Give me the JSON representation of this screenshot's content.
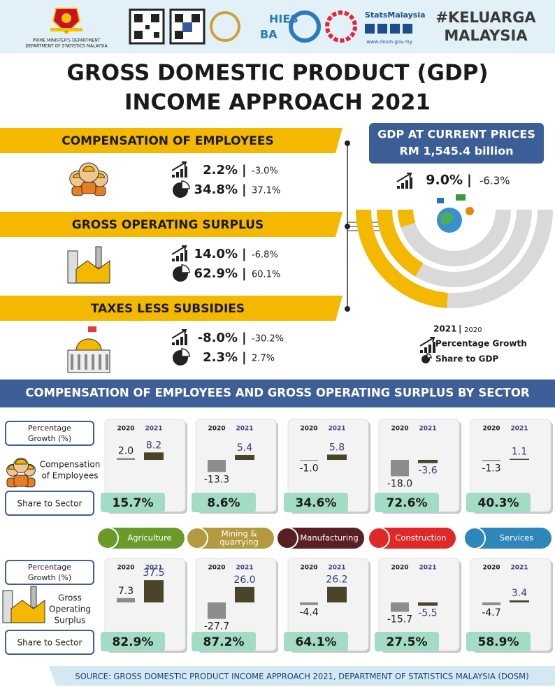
{
  "header": {
    "org_lines": [
      "PRIME MINISTER'S DEPARTMENT",
      "DEPARTMENT OF STATISTICS MALAYSIA"
    ],
    "hies_lines": [
      "HIES",
      "BA"
    ],
    "stats_brand": "StatsMalaysia",
    "url": "www.dosm.gov.my",
    "hashtag_lines": [
      "#KELUARGA",
      "MALAYSIA"
    ]
  },
  "title_lines": [
    "GROSS DOMESTIC PRODUCT (GDP)",
    "INCOME APPROACH 2021"
  ],
  "separator": "|",
  "components": [
    {
      "name": "COMPENSATION OF EMPLOYEES",
      "growth_2021": "2.2%",
      "growth_2020": "-3.0%",
      "share_2021": "34.8%",
      "share_2020": "37.1%"
    },
    {
      "name": "GROSS OPERATING SURPLUS",
      "growth_2021": "14.0%",
      "growth_2020": "-6.8%",
      "share_2021": "62.9%",
      "share_2020": "60.1%"
    },
    {
      "name": "TAXES LESS SUBSIDIES",
      "growth_2021": "-8.0%",
      "growth_2020": "-30.2%",
      "share_2021": "2.3%",
      "share_2020": "2.7%"
    }
  ],
  "gdp": {
    "label": "GDP AT CURRENT PRICES",
    "value": "RM 1,545.4 billion",
    "growth_2021": "9.0%",
    "growth_2020": "-6.3%"
  },
  "legend": {
    "year_2021": "2021",
    "year_2020": "2020",
    "growth": "Percentage Growth",
    "share": "Share to GDP"
  },
  "sector_section": {
    "title": "COMPENSATION OF EMPLOYEES AND GROSS OPERATING SURPLUS BY SECTOR",
    "growth_label_lines": [
      "Percentage",
      "Growth (%)"
    ],
    "share_label": "Share to Sector",
    "sectors": [
      {
        "label_lines": [
          "Agriculture"
        ]
      },
      {
        "label_lines": [
          "Mining &",
          "quarrying"
        ]
      },
      {
        "label_lines": [
          "Manufacturing"
        ]
      },
      {
        "label_lines": [
          "Construction"
        ]
      },
      {
        "label_lines": [
          "Services"
        ]
      }
    ],
    "rows": [
      {
        "label_lines": [
          "Compensation",
          "of Employees"
        ],
        "panels": [
          {
            "years": [
              "2020",
              "2021"
            ],
            "values": [
              2.0,
              8.2
            ],
            "value_labels": [
              "2.0",
              "8.2"
            ],
            "share": "15.7%"
          },
          {
            "years": [
              "2020",
              "2021"
            ],
            "values": [
              -13.3,
              5.4
            ],
            "value_labels": [
              "-13.3",
              "5.4"
            ],
            "share": "8.6%"
          },
          {
            "years": [
              "2020",
              "2021"
            ],
            "values": [
              -1.0,
              5.8
            ],
            "value_labels": [
              "-1.0",
              "5.8"
            ],
            "share": "34.6%"
          },
          {
            "years": [
              "2020",
              "2021"
            ],
            "values": [
              -18.0,
              -3.6
            ],
            "value_labels": [
              "-18.0",
              "-3.6"
            ],
            "share": "72.6%"
          },
          {
            "years": [
              "2020",
              "2021"
            ],
            "values": [
              -1.3,
              1.1
            ],
            "value_labels": [
              "-1.3",
              "1.1"
            ],
            "share": "40.3%"
          }
        ]
      },
      {
        "label_lines": [
          "Gross",
          "Operating",
          "Surplus"
        ],
        "panels": [
          {
            "years": [
              "2020",
              "2021"
            ],
            "values": [
              7.3,
              37.5
            ],
            "value_labels": [
              "7.3",
              "37.5"
            ],
            "share": "82.9%"
          },
          {
            "years": [
              "2020",
              "2021"
            ],
            "values": [
              -27.7,
              26.0
            ],
            "value_labels": [
              "-27.7",
              "26.0"
            ],
            "share": "87.2%"
          },
          {
            "years": [
              "2020",
              "2021"
            ],
            "values": [
              -4.4,
              26.2
            ],
            "value_labels": [
              "-4.4",
              "26.2"
            ],
            "share": "64.1%"
          },
          {
            "years": [
              "2020",
              "2021"
            ],
            "values": [
              -15.7,
              -5.5
            ],
            "value_labels": [
              "-15.7",
              "-5.5"
            ],
            "share": "27.5%"
          },
          {
            "years": [
              "2020",
              "2021"
            ],
            "values": [
              -4.7,
              3.4
            ],
            "value_labels": [
              "-4.7",
              "3.4"
            ],
            "share": "58.9%"
          }
        ]
      }
    ]
  },
  "source": "SOURCE: GROSS DOMESTIC PRODUCT INCOME APPROACH 2021, DEPARTMENT OF STATISTICS MALAYSIA (DOSM)"
}
